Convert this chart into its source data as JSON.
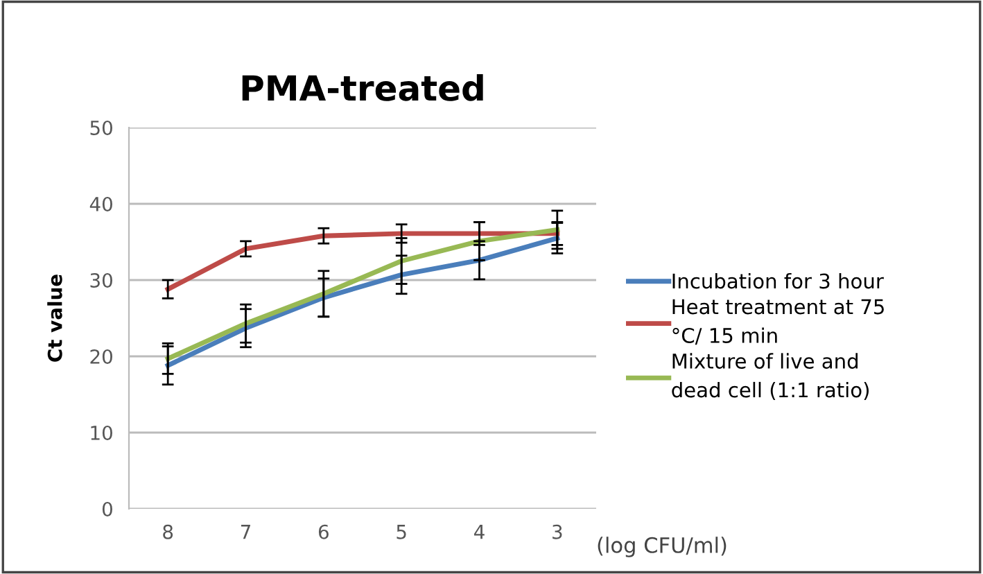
{
  "chart_data": {
    "type": "line",
    "title": "PMA-treated",
    "xlabel": "(log CFU/ml)",
    "ylabel": "Ct value",
    "categories": [
      "8",
      "7",
      "6",
      "5",
      "4",
      "3"
    ],
    "series": [
      {
        "name": "Incubation for 3 hour",
        "color": "#4a7ebb",
        "values": [
          18.8,
          23.7,
          27.7,
          30.7,
          32.6,
          35.5
        ],
        "errors": [
          2.5,
          2.5,
          2.5,
          2.5,
          2.5,
          2
        ]
      },
      {
        "name": "Heat treatment at 75 °C/ 15 min",
        "color": "#be4b48",
        "values": [
          28.8,
          34.1,
          35.8,
          36.1,
          36.1,
          36.1
        ],
        "errors": [
          1.2,
          1,
          1,
          1.2,
          1.5,
          1.5
        ]
      },
      {
        "name": "Mixture of live and dead cell (1:1 ratio)",
        "color": "#98b954",
        "values": [
          19.7,
          24.3,
          28.2,
          32.5,
          35.1,
          36.6
        ],
        "errors": [
          2,
          2.5,
          3,
          3,
          2.5,
          2.5
        ]
      }
    ],
    "ylim": [
      0,
      50
    ],
    "yticks": [
      0,
      10,
      20,
      30,
      40,
      50
    ],
    "grid": "y",
    "legend": "right",
    "marker": "none",
    "line_style": "solid"
  }
}
